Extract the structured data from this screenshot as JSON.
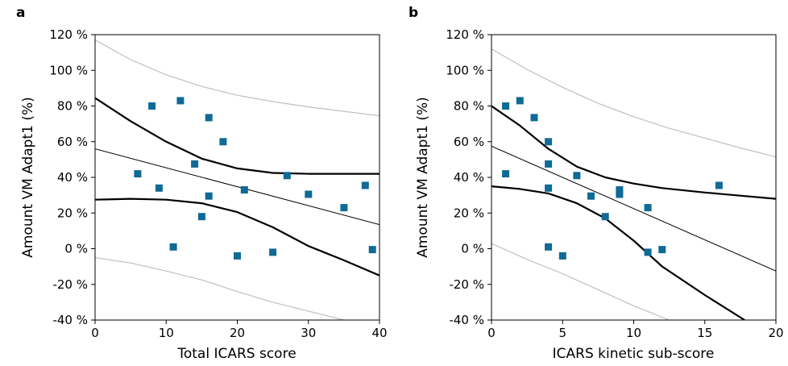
{
  "chart_data": [
    {
      "type": "scatter",
      "panel_label": "a",
      "xlabel": "Total ICARS score",
      "ylabel": "Amount VM Adapt1  (%)",
      "xlim": [
        0,
        40
      ],
      "ylim": [
        -40,
        120
      ],
      "x_ticks": [
        0,
        10,
        20,
        30,
        40
      ],
      "y_ticks": [
        -40,
        -20,
        0,
        20,
        40,
        60,
        80,
        100,
        120
      ],
      "y_tick_labels": [
        "-40 %",
        "-20 %",
        "0 %",
        "20 %",
        "40 %",
        "60 %",
        "80 %",
        "100 %",
        "120 %"
      ],
      "grid": false,
      "marker_color": "#0f6a96",
      "points": [
        {
          "x": 6,
          "y": 42
        },
        {
          "x": 8,
          "y": 80
        },
        {
          "x": 9,
          "y": 34
        },
        {
          "x": 11,
          "y": 1
        },
        {
          "x": 12,
          "y": 83
        },
        {
          "x": 14,
          "y": 47.5
        },
        {
          "x": 15,
          "y": 18
        },
        {
          "x": 16,
          "y": 73.5
        },
        {
          "x": 16,
          "y": 29.5
        },
        {
          "x": 18,
          "y": 60
        },
        {
          "x": 20,
          "y": -4
        },
        {
          "x": 21,
          "y": 33
        },
        {
          "x": 25,
          "y": -2
        },
        {
          "x": 27,
          "y": 41
        },
        {
          "x": 30,
          "y": 30.5
        },
        {
          "x": 35,
          "y": 23
        },
        {
          "x": 38,
          "y": 35.5
        },
        {
          "x": 39,
          "y": -0.5
        }
      ],
      "regression_line": {
        "x": [
          0,
          40
        ],
        "y": [
          56,
          13.5
        ]
      },
      "confidence_upper": {
        "x": [
          0,
          5,
          10,
          15,
          20,
          25,
          30,
          35,
          40
        ],
        "y": [
          84.5,
          71.5,
          60,
          50.5,
          45,
          42.5,
          42,
          42,
          42
        ]
      },
      "confidence_lower": {
        "x": [
          0,
          5,
          10,
          15,
          20,
          25,
          30,
          35,
          40
        ],
        "y": [
          27.5,
          28,
          27.5,
          25.5,
          20.5,
          12,
          1.5,
          -6.5,
          -15
        ]
      },
      "prediction_upper": {
        "x": [
          0,
          5,
          10,
          15,
          20,
          25,
          30,
          35,
          40
        ],
        "y": [
          117,
          106,
          97.5,
          91,
          86,
          82.5,
          79.5,
          77,
          74.5
        ]
      },
      "prediction_lower": {
        "x": [
          0,
          5,
          10,
          15,
          20,
          25,
          30,
          35,
          40
        ],
        "y": [
          -5,
          -8,
          -12.5,
          -17.5,
          -24,
          -30,
          -35,
          -40,
          -42
        ]
      },
      "band_color": "#000000",
      "prediction_color": "#bfbfbf"
    },
    {
      "type": "scatter",
      "panel_label": "b",
      "xlabel": "ICARS kinetic sub-score",
      "ylabel": "Amount VM Adapt1  (%)",
      "xlim": [
        0,
        20
      ],
      "ylim": [
        -40,
        120
      ],
      "x_ticks": [
        0,
        5,
        10,
        15,
        20
      ],
      "y_ticks": [
        -40,
        -20,
        0,
        20,
        40,
        60,
        80,
        100,
        120
      ],
      "y_tick_labels": [
        "-40 %",
        "-20 %",
        "0 %",
        "20 %",
        "40 %",
        "60 %",
        "80 %",
        "100 %",
        "120 %"
      ],
      "grid": false,
      "marker_color": "#0f6a96",
      "points": [
        {
          "x": 1,
          "y": 80
        },
        {
          "x": 1,
          "y": 42
        },
        {
          "x": 2,
          "y": 83
        },
        {
          "x": 3,
          "y": 73.5
        },
        {
          "x": 4,
          "y": 60
        },
        {
          "x": 4,
          "y": 47.5
        },
        {
          "x": 4,
          "y": 34
        },
        {
          "x": 4,
          "y": 1
        },
        {
          "x": 5,
          "y": -4
        },
        {
          "x": 6,
          "y": 41
        },
        {
          "x": 7,
          "y": 29.5
        },
        {
          "x": 8,
          "y": 18
        },
        {
          "x": 9,
          "y": 33
        },
        {
          "x": 9,
          "y": 30.5
        },
        {
          "x": 11,
          "y": 23
        },
        {
          "x": 11,
          "y": -2
        },
        {
          "x": 12,
          "y": -0.5
        },
        {
          "x": 16,
          "y": 35.5
        }
      ],
      "regression_line": {
        "x": [
          0,
          20
        ],
        "y": [
          57.5,
          -12.5
        ]
      },
      "confidence_upper": {
        "x": [
          0,
          2,
          4,
          6,
          8,
          10,
          12,
          15,
          20
        ],
        "y": [
          80,
          69,
          56,
          46,
          40,
          36.5,
          34,
          31.5,
          28
        ]
      },
      "confidence_lower": {
        "x": [
          0,
          2,
          4,
          6,
          8,
          10,
          12,
          15,
          17.8
        ],
        "y": [
          35,
          33.5,
          31,
          25.5,
          17,
          4.5,
          -10,
          -26,
          -40
        ]
      },
      "prediction_upper": {
        "x": [
          0,
          2.5,
          5,
          7.5,
          10,
          12.5,
          15,
          17.5,
          20
        ],
        "y": [
          112,
          100.5,
          90.5,
          81.5,
          74,
          67.5,
          62,
          56.5,
          51.5
        ]
      },
      "prediction_lower": {
        "x": [
          0,
          2.5,
          5,
          7.5,
          10,
          12.5
        ],
        "y": [
          3,
          -6,
          -14,
          -23,
          -32,
          -40
        ]
      },
      "band_color": "#000000",
      "prediction_color": "#bfbfbf"
    }
  ]
}
